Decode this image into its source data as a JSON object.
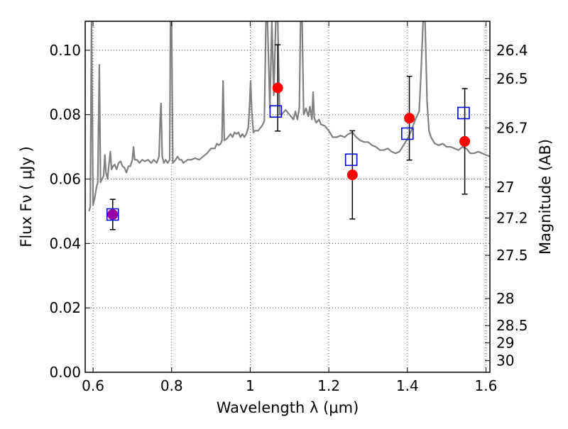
{
  "chart_data": {
    "type": "scatter",
    "title": "",
    "xlabel": "Wavelength  λ (μm)",
    "ylabel": "Flux  Fν  ( μJy )",
    "y2label": "Magnitude (AB)",
    "xlim": [
      0.58,
      1.61
    ],
    "ylim": [
      0.0,
      0.109
    ],
    "grid": true,
    "x_ticks": [
      0.6,
      0.8,
      1.0,
      1.2,
      1.4,
      1.6
    ],
    "x_tick_labels": [
      "0.6",
      "0.8",
      "1",
      "1.2",
      "1.4",
      "1.6"
    ],
    "y_ticks": [
      0.0,
      0.02,
      0.04,
      0.06,
      0.08,
      0.1
    ],
    "y_tick_labels": [
      "0.00",
      "0.02",
      "0.04",
      "0.06",
      "0.08",
      "0.10"
    ],
    "y2_ticks": [
      {
        "label": "26.4",
        "flux": 0.1
      },
      {
        "label": "26.5",
        "flux": 0.0912
      },
      {
        "label": "26.7",
        "flux": 0.0759
      },
      {
        "label": "27",
        "flux": 0.0575
      },
      {
        "label": "27.2",
        "flux": 0.0479
      },
      {
        "label": "27.5",
        "flux": 0.0363
      },
      {
        "label": "28",
        "flux": 0.0229
      },
      {
        "label": "28.5",
        "flux": 0.0145
      },
      {
        "label": "29",
        "flux": 0.0091
      },
      {
        "label": "30",
        "flux": 0.0036
      }
    ],
    "colors": {
      "spectrum": "#808080",
      "observed": "#ff0000",
      "model": "#0000cc",
      "overlap": "#9900aa",
      "errorbar": "#000000",
      "grid": "#555555"
    },
    "series": [
      {
        "kind": "line",
        "points": [
          [
            0.59,
            0.05
          ],
          [
            0.593,
            0.0515
          ],
          [
            0.596,
            0.109
          ],
          [
            0.6,
            0.052
          ],
          [
            0.604,
            0.054
          ],
          [
            0.608,
            0.057
          ],
          [
            0.612,
            0.059
          ],
          [
            0.616,
            0.0955
          ],
          [
            0.619,
            0.059
          ],
          [
            0.623,
            0.06
          ],
          [
            0.627,
            0.061
          ],
          [
            0.63,
            0.0675
          ],
          [
            0.633,
            0.062
          ],
          [
            0.637,
            0.06
          ],
          [
            0.64,
            0.064
          ],
          [
            0.644,
            0.0685
          ],
          [
            0.647,
            0.063
          ],
          [
            0.651,
            0.064
          ],
          [
            0.655,
            0.0645
          ],
          [
            0.66,
            0.063
          ],
          [
            0.665,
            0.065
          ],
          [
            0.67,
            0.0655
          ],
          [
            0.675,
            0.064
          ],
          [
            0.68,
            0.0635
          ],
          [
            0.685,
            0.062
          ],
          [
            0.69,
            0.064
          ],
          [
            0.695,
            0.064
          ],
          [
            0.7,
            0.066
          ],
          [
            0.703,
            0.07
          ],
          [
            0.706,
            0.066
          ],
          [
            0.712,
            0.066
          ],
          [
            0.718,
            0.065
          ],
          [
            0.725,
            0.066
          ],
          [
            0.732,
            0.0655
          ],
          [
            0.74,
            0.066
          ],
          [
            0.748,
            0.065
          ],
          [
            0.755,
            0.066
          ],
          [
            0.762,
            0.065
          ],
          [
            0.768,
            0.067
          ],
          [
            0.771,
            0.079
          ],
          [
            0.773,
            0.0835
          ],
          [
            0.776,
            0.067
          ],
          [
            0.78,
            0.065
          ],
          [
            0.785,
            0.066
          ],
          [
            0.79,
            0.065
          ],
          [
            0.795,
            0.066
          ],
          [
            0.797,
            0.109
          ],
          [
            0.8,
            0.109
          ],
          [
            0.803,
            0.065
          ],
          [
            0.81,
            0.066
          ],
          [
            0.815,
            0.067
          ],
          [
            0.82,
            0.066
          ],
          [
            0.825,
            0.066
          ],
          [
            0.83,
            0.065
          ],
          [
            0.84,
            0.066
          ],
          [
            0.85,
            0.066
          ],
          [
            0.86,
            0.0665
          ],
          [
            0.87,
            0.066
          ],
          [
            0.88,
            0.067
          ],
          [
            0.89,
            0.068
          ],
          [
            0.9,
            0.0695
          ],
          [
            0.91,
            0.0695
          ],
          [
            0.915,
            0.071
          ],
          [
            0.92,
            0.0705
          ],
          [
            0.925,
            0.071
          ],
          [
            0.928,
            0.072
          ],
          [
            0.931,
            0.0905
          ],
          [
            0.934,
            0.072
          ],
          [
            0.94,
            0.0725
          ],
          [
            0.95,
            0.074
          ],
          [
            0.955,
            0.073
          ],
          [
            0.96,
            0.0745
          ],
          [
            0.965,
            0.074
          ],
          [
            0.97,
            0.0745
          ],
          [
            0.975,
            0.073
          ],
          [
            0.98,
            0.074
          ],
          [
            0.985,
            0.073
          ],
          [
            0.99,
            0.074
          ],
          [
            0.995,
            0.076
          ],
          [
            0.998,
            0.082
          ],
          [
            1.001,
            0.0905
          ],
          [
            1.004,
            0.081
          ],
          [
            1.008,
            0.0745
          ],
          [
            1.012,
            0.075
          ],
          [
            1.02,
            0.075
          ],
          [
            1.03,
            0.0765
          ],
          [
            1.036,
            0.078
          ],
          [
            1.04,
            0.109
          ],
          [
            1.044,
            0.109
          ],
          [
            1.05,
            0.082
          ],
          [
            1.055,
            0.109
          ],
          [
            1.06,
            0.086
          ],
          [
            1.065,
            0.109
          ],
          [
            1.07,
            0.109
          ],
          [
            1.075,
            0.08
          ],
          [
            1.08,
            0.08
          ],
          [
            1.09,
            0.0815
          ],
          [
            1.1,
            0.08
          ],
          [
            1.11,
            0.0785
          ],
          [
            1.115,
            0.081
          ],
          [
            1.12,
            0.0785
          ],
          [
            1.125,
            0.082
          ],
          [
            1.128,
            0.109
          ],
          [
            1.132,
            0.109
          ],
          [
            1.136,
            0.08
          ],
          [
            1.142,
            0.082
          ],
          [
            1.148,
            0.0795
          ],
          [
            1.152,
            0.0825
          ],
          [
            1.157,
            0.0785
          ],
          [
            1.16,
            0.087
          ],
          [
            1.163,
            0.079
          ],
          [
            1.168,
            0.0775
          ],
          [
            1.175,
            0.0785
          ],
          [
            1.18,
            0.077
          ],
          [
            1.19,
            0.0765
          ],
          [
            1.2,
            0.075
          ],
          [
            1.21,
            0.073
          ],
          [
            1.22,
            0.073
          ],
          [
            1.23,
            0.0735
          ],
          [
            1.24,
            0.073
          ],
          [
            1.25,
            0.074
          ],
          [
            1.26,
            0.0745
          ],
          [
            1.27,
            0.073
          ],
          [
            1.28,
            0.072
          ],
          [
            1.29,
            0.0715
          ],
          [
            1.3,
            0.0715
          ],
          [
            1.31,
            0.0705
          ],
          [
            1.32,
            0.07
          ],
          [
            1.33,
            0.069
          ],
          [
            1.34,
            0.069
          ],
          [
            1.35,
            0.0695
          ],
          [
            1.36,
            0.0685
          ],
          [
            1.37,
            0.068
          ],
          [
            1.38,
            0.0685
          ],
          [
            1.39,
            0.0705
          ],
          [
            1.4,
            0.0725
          ],
          [
            1.41,
            0.075
          ],
          [
            1.42,
            0.0785
          ],
          [
            1.43,
            0.081
          ],
          [
            1.435,
            0.094
          ],
          [
            1.44,
            0.109
          ],
          [
            1.445,
            0.109
          ],
          [
            1.45,
            0.084
          ],
          [
            1.455,
            0.075
          ],
          [
            1.46,
            0.073
          ],
          [
            1.47,
            0.071
          ],
          [
            1.48,
            0.0705
          ],
          [
            1.49,
            0.071
          ],
          [
            1.5,
            0.07
          ],
          [
            1.51,
            0.07
          ],
          [
            1.52,
            0.0695
          ],
          [
            1.53,
            0.069
          ],
          [
            1.54,
            0.07
          ],
          [
            1.55,
            0.0695
          ],
          [
            1.56,
            0.068
          ],
          [
            1.57,
            0.068
          ],
          [
            1.58,
            0.0685
          ],
          [
            1.59,
            0.068
          ],
          [
            1.6,
            0.0675
          ],
          [
            1.61,
            0.067
          ]
        ]
      },
      {
        "kind": "errorbar",
        "points": [
          {
            "x": 0.65,
            "y": 0.049,
            "low": 0.0443,
            "high": 0.0537
          },
          {
            "x": 1.07,
            "y": 0.0883,
            "low": 0.0749,
            "high": 0.1017
          },
          {
            "x": 1.26,
            "y": 0.0613,
            "low": 0.0476,
            "high": 0.075
          },
          {
            "x": 1.405,
            "y": 0.0789,
            "low": 0.0659,
            "high": 0.0919
          },
          {
            "x": 1.546,
            "y": 0.0717,
            "low": 0.0553,
            "high": 0.0881
          }
        ]
      },
      {
        "kind": "square",
        "points": [
          [
            0.65,
            0.049
          ],
          [
            1.065,
            0.081
          ],
          [
            1.257,
            0.066
          ],
          [
            1.4,
            0.0741
          ],
          [
            1.543,
            0.0805
          ]
        ]
      }
    ]
  }
}
